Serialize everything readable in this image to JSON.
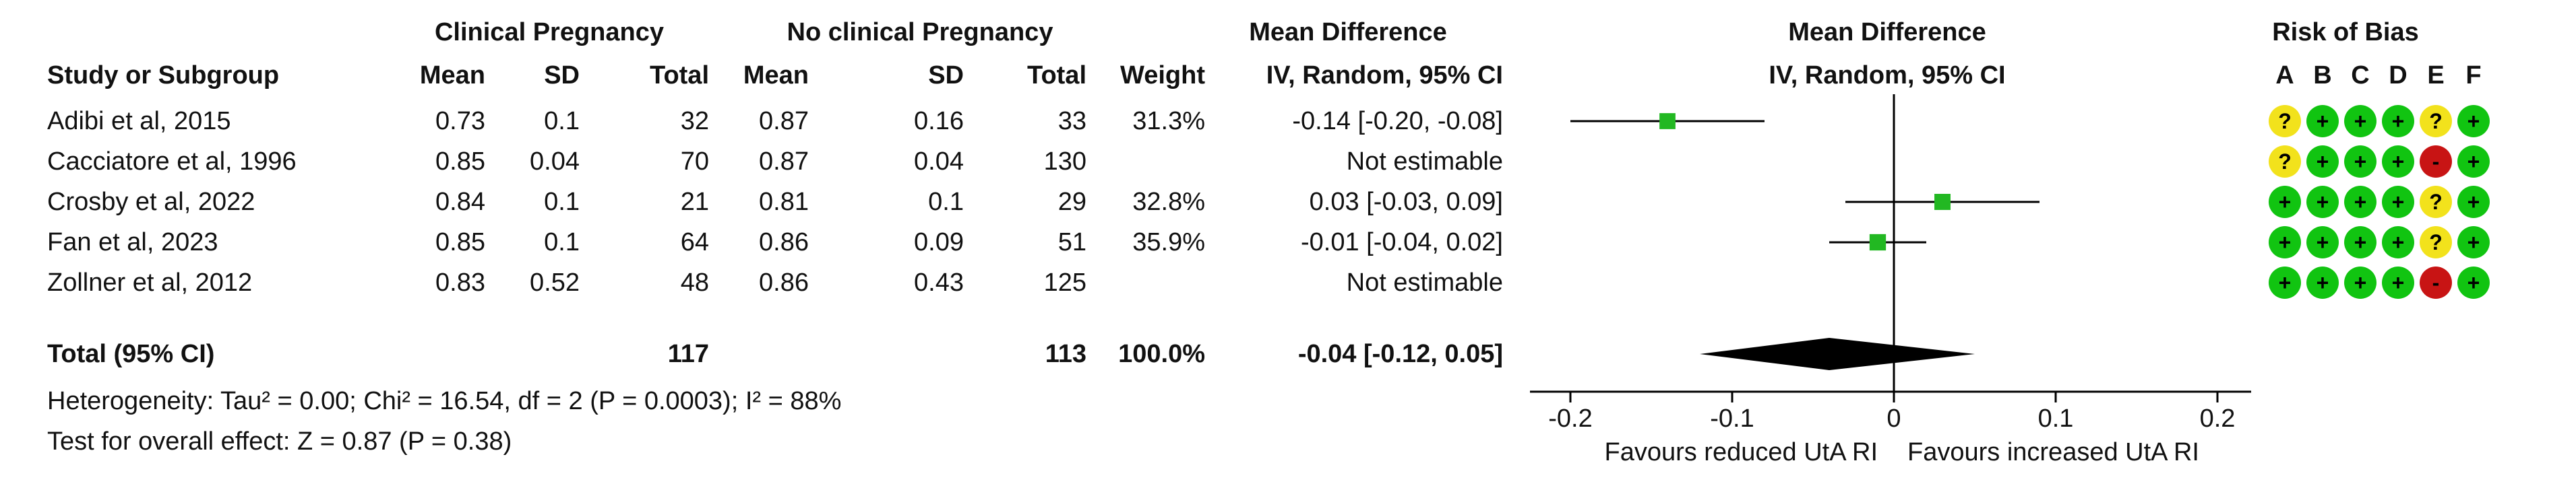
{
  "header": {
    "group1": "Clinical Pregnancy",
    "group2": "No clinical Pregnancy",
    "md_header": "Mean Difference",
    "md_method": "IV, Random, 95% CI",
    "plot_header": "Mean Difference",
    "plot_method": "IV, Random, 95% CI",
    "rob_header": "Risk of Bias",
    "study_col": "Study or Subgroup",
    "mean1": "Mean",
    "sd1": "SD",
    "total1": "Total",
    "mean2": "Mean",
    "sd2": "SD",
    "total2": "Total",
    "weight": "Weight"
  },
  "rob_domains": [
    "A",
    "B",
    "C",
    "D",
    "E",
    "F"
  ],
  "studies": [
    {
      "name": "Adibi et al, 2015",
      "mean1": "0.73",
      "sd1": "0.1",
      "total1": "32",
      "mean2": "0.87",
      "sd2": "0.16",
      "total2": "33",
      "weight": "31.3%",
      "md": "-0.14 [-0.20, -0.08]",
      "rob": [
        "?",
        "+",
        "+",
        "+",
        "?",
        "+"
      ]
    },
    {
      "name": "Cacciatore et al, 1996",
      "mean1": "0.85",
      "sd1": "0.04",
      "total1": "70",
      "mean2": "0.87",
      "sd2": "0.04",
      "total2": "130",
      "weight": "",
      "md": "Not estimable",
      "rob": [
        "?",
        "+",
        "+",
        "+",
        "-",
        "+"
      ]
    },
    {
      "name": "Crosby et al, 2022",
      "mean1": "0.84",
      "sd1": "0.1",
      "total1": "21",
      "mean2": "0.81",
      "sd2": "0.1",
      "total2": "29",
      "weight": "32.8%",
      "md": "0.03 [-0.03, 0.09]",
      "rob": [
        "+",
        "+",
        "+",
        "+",
        "?",
        "+"
      ]
    },
    {
      "name": "Fan et al, 2023",
      "mean1": "0.85",
      "sd1": "0.1",
      "total1": "64",
      "mean2": "0.86",
      "sd2": "0.09",
      "total2": "51",
      "weight": "35.9%",
      "md": "-0.01 [-0.04, 0.02]",
      "rob": [
        "+",
        "+",
        "+",
        "+",
        "?",
        "+"
      ]
    },
    {
      "name": "Zollner et al, 2012",
      "mean1": "0.83",
      "sd1": "0.52",
      "total1": "48",
      "mean2": "0.86",
      "sd2": "0.43",
      "total2": "125",
      "weight": "",
      "md": "Not estimable",
      "rob": [
        "+",
        "+",
        "+",
        "+",
        "-",
        "+"
      ]
    }
  ],
  "total": {
    "label": "Total (95% CI)",
    "total1": "117",
    "total2": "113",
    "weight": "100.0%",
    "md": "-0.04 [-0.12, 0.05]"
  },
  "heterogeneity": "Heterogeneity: Tau² = 0.00; Chi² = 16.54, df = 2 (P = 0.0003); I² = 88%",
  "overall_effect": "Test for overall effect: Z = 0.87 (P = 0.38)",
  "axis": {
    "ticks": [
      -0.2,
      -0.1,
      0,
      0.1,
      0.2
    ],
    "tick_labels": [
      "-0.2",
      "-0.1",
      "0",
      "0.1",
      "0.2"
    ],
    "favours_left": "Favours reduced UtA RI",
    "favours_right": "Favours increased UtA RI"
  },
  "colors": {
    "marker": "#22b822",
    "diamond": "#000000",
    "rob_low": "#11c411",
    "rob_unclear": "#f2e21c",
    "rob_high": "#c81414"
  },
  "chart_data": {
    "type": "forest",
    "xlim": [
      -0.2,
      0.2
    ],
    "null_line": 0,
    "studies": [
      {
        "name": "Adibi et al, 2015",
        "md": -0.14,
        "ci": [
          -0.2,
          -0.08
        ],
        "weight": 31.3
      },
      {
        "name": "Cacciatore et al, 1996",
        "md": null,
        "ci": null,
        "weight": null
      },
      {
        "name": "Crosby et al, 2022",
        "md": 0.03,
        "ci": [
          -0.03,
          0.09
        ],
        "weight": 32.8
      },
      {
        "name": "Fan et al, 2023",
        "md": -0.01,
        "ci": [
          -0.04,
          0.02
        ],
        "weight": 35.9
      },
      {
        "name": "Zollner et al, 2012",
        "md": null,
        "ci": null,
        "weight": null
      }
    ],
    "pooled": {
      "md": -0.04,
      "ci": [
        -0.12,
        0.05
      ]
    }
  }
}
